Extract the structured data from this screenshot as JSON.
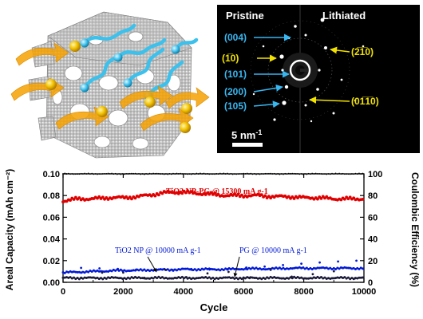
{
  "saed_panel": {
    "label_pristine": "Pristine",
    "label_lithiated": "Lithiated",
    "scale_bar_text": "5 nm",
    "scale_bar_exponent": "-1",
    "pristine_reflections": [
      "(004)",
      "(1̅0)",
      "(101)",
      "(200)",
      "(105)"
    ],
    "lithiated_reflections": [
      "(2̅1̅0)",
      "(01̅1̅0)"
    ],
    "pristine_reflections_raw": [
      "(004)",
      "(1100)",
      "(101)",
      "(200)",
      "(105)"
    ],
    "lithiated_reflections_raw": [
      "(2110)",
      "(0110)"
    ],
    "colors": {
      "pristine_label": "#38b6f0",
      "lithiated_label": "#f2e200",
      "background": "#000000",
      "text": "#ffffff"
    }
  },
  "illustration": {
    "colors": {
      "framework": "#b7b7b7",
      "ion_sphere": "#f2c200",
      "ion_arrow": "#f5a100",
      "electron": "#3cc0ec"
    }
  },
  "chart_data": {
    "type": "scatter",
    "title": "",
    "xlabel": "Cycle",
    "ylabel": "Areal Capacity (mAh cm⁻²)",
    "y2label": "Coulombic Efficiency (%)",
    "xlim": [
      0,
      10000
    ],
    "ylim": [
      0,
      0.1
    ],
    "y2lim": [
      0,
      100
    ],
    "xticks": [
      0,
      2000,
      4000,
      6000,
      8000,
      10000
    ],
    "yticks": [
      0.0,
      0.02,
      0.04,
      0.06,
      0.08,
      0.1
    ],
    "y2ticks": [
      0,
      20,
      40,
      60,
      80,
      100
    ],
    "grid": false,
    "series": [
      {
        "name": "TiO2 NP-PG @ 15300 mA g-1",
        "axis": "left",
        "color": "#e00000",
        "x": [
          0,
          500,
          1000,
          1500,
          2000,
          2500,
          3000,
          3500,
          4000,
          4500,
          5000,
          5500,
          6000,
          6500,
          7000,
          7500,
          8000,
          8500,
          9000,
          9500,
          10000
        ],
        "y": [
          0.075,
          0.077,
          0.077,
          0.078,
          0.078,
          0.079,
          0.081,
          0.083,
          0.083,
          0.082,
          0.081,
          0.08,
          0.08,
          0.08,
          0.079,
          0.079,
          0.078,
          0.078,
          0.077,
          0.077,
          0.077
        ]
      },
      {
        "name": "TiO2 NP @ 10000 mA g-1",
        "axis": "left",
        "color": "#0018d8",
        "x": [
          0,
          500,
          1000,
          1500,
          2000,
          2500,
          3000,
          3500,
          4000,
          4500,
          5000,
          5500,
          6000,
          6500,
          7000,
          7500,
          8000,
          8500,
          9000,
          9500,
          10000
        ],
        "y": [
          0.009,
          0.0095,
          0.01,
          0.0105,
          0.011,
          0.011,
          0.0115,
          0.0115,
          0.012,
          0.012,
          0.012,
          0.012,
          0.0125,
          0.0125,
          0.0125,
          0.013,
          0.013,
          0.013,
          0.013,
          0.013,
          0.013
        ]
      },
      {
        "name": "PG @ 10000 mA g-1",
        "axis": "left",
        "color": "#1a1a3a",
        "x": [
          0,
          500,
          1000,
          1500,
          2000,
          2500,
          3000,
          3500,
          4000,
          4500,
          5000,
          5500,
          6000,
          6500,
          7000,
          7500,
          8000,
          8500,
          9000,
          9500,
          10000
        ],
        "y": [
          0.004,
          0.004,
          0.004,
          0.004,
          0.004,
          0.004,
          0.004,
          0.004,
          0.004,
          0.004,
          0.004,
          0.004,
          0.004,
          0.004,
          0.004,
          0.004,
          0.004,
          0.004,
          0.004,
          0.004,
          0.004
        ]
      },
      {
        "name": "",
        "axis": "right",
        "color": "#000000",
        "x": [
          0,
          500,
          1000,
          1500,
          2000,
          2500,
          3000,
          3500,
          4000,
          4500,
          5000,
          5500,
          6000,
          6500,
          7000,
          7500,
          8000,
          8500,
          9000,
          9500,
          10000
        ],
        "y": [
          100,
          100,
          100,
          100,
          100,
          100,
          100,
          100,
          100,
          100,
          100,
          100,
          100,
          100,
          100,
          100,
          100,
          100,
          100,
          100,
          100
        ]
      }
    ],
    "annotations": [
      {
        "text": "TiO2 NP-PG @ 15300 mA g-1",
        "color": "#e00000"
      },
      {
        "text": "TiO2 NP @ 10000 mA g-1",
        "color": "#0018d8"
      },
      {
        "text": "PG @ 10000 mA g-1",
        "color": "#0018d8"
      }
    ]
  }
}
